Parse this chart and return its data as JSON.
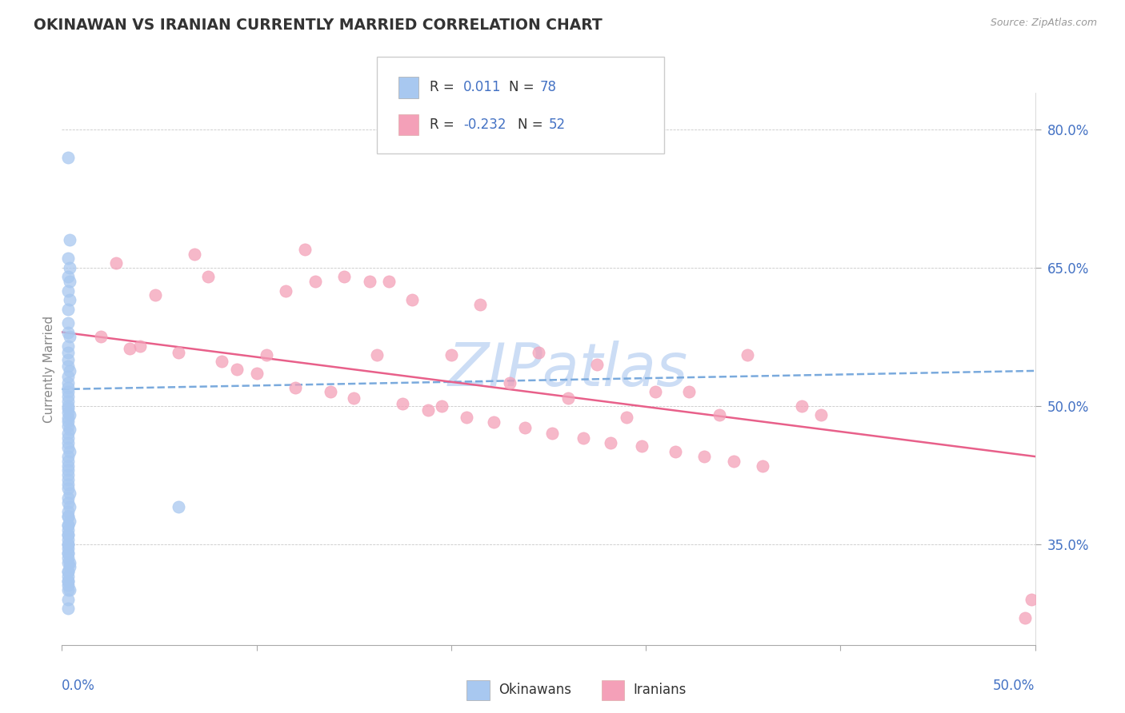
{
  "title": "OKINAWAN VS IRANIAN CURRENTLY MARRIED CORRELATION CHART",
  "source_text": "Source: ZipAtlas.com",
  "ylabel": "Currently Married",
  "ytick_labels": [
    "35.0%",
    "50.0%",
    "65.0%",
    "80.0%"
  ],
  "ytick_values": [
    0.35,
    0.5,
    0.65,
    0.8
  ],
  "xlim": [
    0.0,
    0.5
  ],
  "ylim": [
    0.24,
    0.84
  ],
  "okinawan_color": "#a8c8f0",
  "iranian_color": "#f4a0b8",
  "okinawan_line_color": "#7aaadd",
  "iranian_line_color": "#e8608a",
  "text_blue": "#4472C4",
  "watermark_color": "#ccddf5",
  "okinawan_x": [
    0.003,
    0.004,
    0.003,
    0.004,
    0.003,
    0.004,
    0.003,
    0.004,
    0.003,
    0.003,
    0.003,
    0.004,
    0.003,
    0.003,
    0.003,
    0.003,
    0.004,
    0.003,
    0.003,
    0.003,
    0.003,
    0.003,
    0.003,
    0.003,
    0.003,
    0.003,
    0.004,
    0.003,
    0.003,
    0.003,
    0.004,
    0.003,
    0.003,
    0.003,
    0.003,
    0.004,
    0.003,
    0.003,
    0.003,
    0.003,
    0.003,
    0.003,
    0.003,
    0.003,
    0.004,
    0.003,
    0.003,
    0.004,
    0.003,
    0.003,
    0.004,
    0.003,
    0.003,
    0.003,
    0.003,
    0.003,
    0.003,
    0.003,
    0.003,
    0.004,
    0.004,
    0.003,
    0.003,
    0.003,
    0.003,
    0.004,
    0.06,
    0.003,
    0.003,
    0.003,
    0.003,
    0.003,
    0.003,
    0.003,
    0.003,
    0.003,
    0.003,
    0.003
  ],
  "okinawan_y": [
    0.77,
    0.68,
    0.66,
    0.65,
    0.64,
    0.635,
    0.625,
    0.615,
    0.605,
    0.59,
    0.58,
    0.575,
    0.565,
    0.558,
    0.55,
    0.543,
    0.538,
    0.532,
    0.525,
    0.52,
    0.515,
    0.51,
    0.505,
    0.5,
    0.497,
    0.493,
    0.49,
    0.487,
    0.483,
    0.478,
    0.475,
    0.47,
    0.465,
    0.46,
    0.455,
    0.45,
    0.445,
    0.44,
    0.435,
    0.43,
    0.425,
    0.42,
    0.415,
    0.41,
    0.405,
    0.4,
    0.395,
    0.39,
    0.385,
    0.38,
    0.375,
    0.37,
    0.365,
    0.36,
    0.355,
    0.35,
    0.345,
    0.34,
    0.335,
    0.33,
    0.325,
    0.32,
    0.315,
    0.31,
    0.305,
    0.3,
    0.39,
    0.38,
    0.37,
    0.36,
    0.35,
    0.34,
    0.33,
    0.32,
    0.31,
    0.3,
    0.29,
    0.28
  ],
  "iranian_x": [
    0.02,
    0.028,
    0.035,
    0.04,
    0.048,
    0.06,
    0.068,
    0.075,
    0.082,
    0.09,
    0.1,
    0.105,
    0.115,
    0.12,
    0.125,
    0.13,
    0.138,
    0.145,
    0.15,
    0.158,
    0.162,
    0.168,
    0.175,
    0.18,
    0.188,
    0.195,
    0.2,
    0.208,
    0.215,
    0.222,
    0.23,
    0.238,
    0.245,
    0.252,
    0.26,
    0.268,
    0.275,
    0.282,
    0.29,
    0.298,
    0.305,
    0.315,
    0.322,
    0.33,
    0.338,
    0.345,
    0.352,
    0.36,
    0.38,
    0.39,
    0.495,
    0.498
  ],
  "iranian_y": [
    0.575,
    0.655,
    0.562,
    0.565,
    0.62,
    0.558,
    0.665,
    0.64,
    0.548,
    0.54,
    0.535,
    0.555,
    0.625,
    0.52,
    0.67,
    0.635,
    0.515,
    0.64,
    0.508,
    0.635,
    0.555,
    0.635,
    0.502,
    0.615,
    0.495,
    0.5,
    0.555,
    0.488,
    0.61,
    0.482,
    0.525,
    0.476,
    0.558,
    0.47,
    0.508,
    0.465,
    0.545,
    0.46,
    0.488,
    0.456,
    0.515,
    0.45,
    0.515,
    0.445,
    0.49,
    0.44,
    0.555,
    0.435,
    0.5,
    0.49,
    0.27,
    0.29
  ],
  "okinawan_trend_x": [
    0.0,
    0.5
  ],
  "okinawan_trend_y": [
    0.518,
    0.538
  ],
  "iranian_trend_x": [
    0.0,
    0.5
  ],
  "iranian_trend_y": [
    0.58,
    0.445
  ]
}
